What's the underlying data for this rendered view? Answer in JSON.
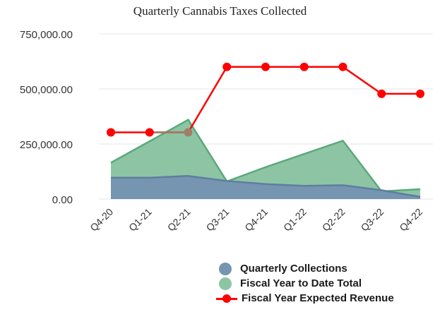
{
  "chart_data": {
    "type": "area",
    "title": "Quarterly Cannabis Taxes Collected",
    "categories": [
      "Q4-20",
      "Q1-21",
      "Q2-21",
      "Q3-21",
      "Q4-21",
      "Q1-22",
      "Q2-22",
      "Q3-22",
      "Q4-22"
    ],
    "ylim": [
      0,
      750000
    ],
    "yticks": [
      "0.00",
      "250,000.00",
      "500,000.00",
      "750,000.00"
    ],
    "grid": true,
    "legend_position": "bottom-right",
    "series": [
      {
        "name": "Fiscal Year to Date Total",
        "type": "area",
        "color": "#8dc5a4",
        "edge": "#5aa97a",
        "values": [
          165000,
          262000,
          360000,
          80000,
          145000,
          205000,
          265000,
          35000,
          45000
        ]
      },
      {
        "name": "Quarterly Collections",
        "type": "area",
        "color": "#7595b1",
        "edge": "#5e7ea0",
        "values": [
          97000,
          97000,
          105000,
          82000,
          68000,
          60000,
          63000,
          40000,
          10000
        ]
      },
      {
        "name": "Fiscal Year Expected Revenue",
        "type": "line",
        "color": "#ff0000",
        "values": [
          303000,
          303000,
          303000,
          600000,
          600000,
          600000,
          600000,
          478000,
          478000
        ]
      }
    ],
    "overlay_segment": {
      "from_index": 1,
      "to_index": 2,
      "value": 303000,
      "color": "#a07f6a"
    }
  }
}
